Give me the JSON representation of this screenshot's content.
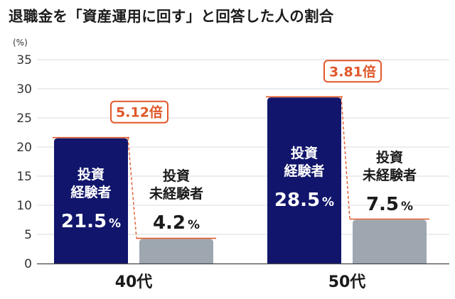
{
  "chart_data": {
    "type": "bar",
    "title": "退職金を「資産運用に回す」と回答した人の割合",
    "y_unit": "(%)",
    "ylim": [
      0,
      35
    ],
    "y_ticks": [
      0,
      5,
      10,
      15,
      20,
      25,
      30,
      35
    ],
    "grid": true,
    "categories": [
      "40代",
      "50代"
    ],
    "series": [
      {
        "name": "投資経験者",
        "label_lines": [
          "投資",
          "経験者"
        ],
        "values": [
          21.5,
          28.5
        ]
      },
      {
        "name": "投資未経験者",
        "label_lines": [
          "投資",
          "未経験者"
        ],
        "values": [
          4.2,
          7.5
        ]
      }
    ],
    "value_labels": [
      [
        "21.5",
        "4.2"
      ],
      [
        "28.5",
        "7.5"
      ]
    ],
    "value_suffix": "%",
    "ratios": [
      "5.12倍",
      "3.81倍"
    ]
  },
  "colors": {
    "experienced": "#11156b",
    "inexperienced": "#9ea6b0",
    "accent": "#e0582a",
    "grid": "#d7dbdf",
    "axis_text": "#333333"
  }
}
